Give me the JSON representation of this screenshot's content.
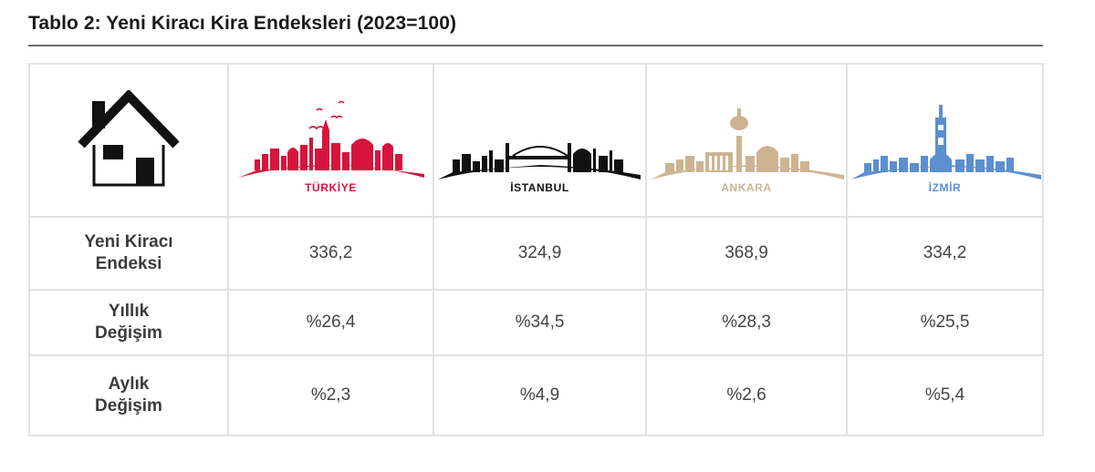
{
  "title": "Tablo 2: Yeni Kiracı Kira Endeksleri (2023=100)",
  "columns": [
    {
      "name": "TÜRKİYE",
      "color": "#d6143c",
      "icon": "turkiye-skyline"
    },
    {
      "name": "İSTANBUL",
      "color": "#111111",
      "icon": "istanbul-skyline"
    },
    {
      "name": "ANKARA",
      "color": "#cdb491",
      "icon": "ankara-skyline"
    },
    {
      "name": "İZMİR",
      "color": "#5b8fd0",
      "icon": "izmir-skyline"
    }
  ],
  "header_icon": "house-icon",
  "rows": [
    {
      "label_line1": "Yeni Kiracı",
      "label_line2": "Endeksi",
      "values": [
        "336,2",
        "324,9",
        "368,9",
        "334,2"
      ]
    },
    {
      "label_line1": "Yıllık",
      "label_line2": "Değişim",
      "values": [
        "%26,4",
        "%34,5",
        "%28,3",
        "%25,5"
      ]
    },
    {
      "label_line1": "Aylık",
      "label_line2": "Değişim",
      "values": [
        "%2,3",
        "%4,9",
        "%2,6",
        "%5,4"
      ]
    }
  ]
}
